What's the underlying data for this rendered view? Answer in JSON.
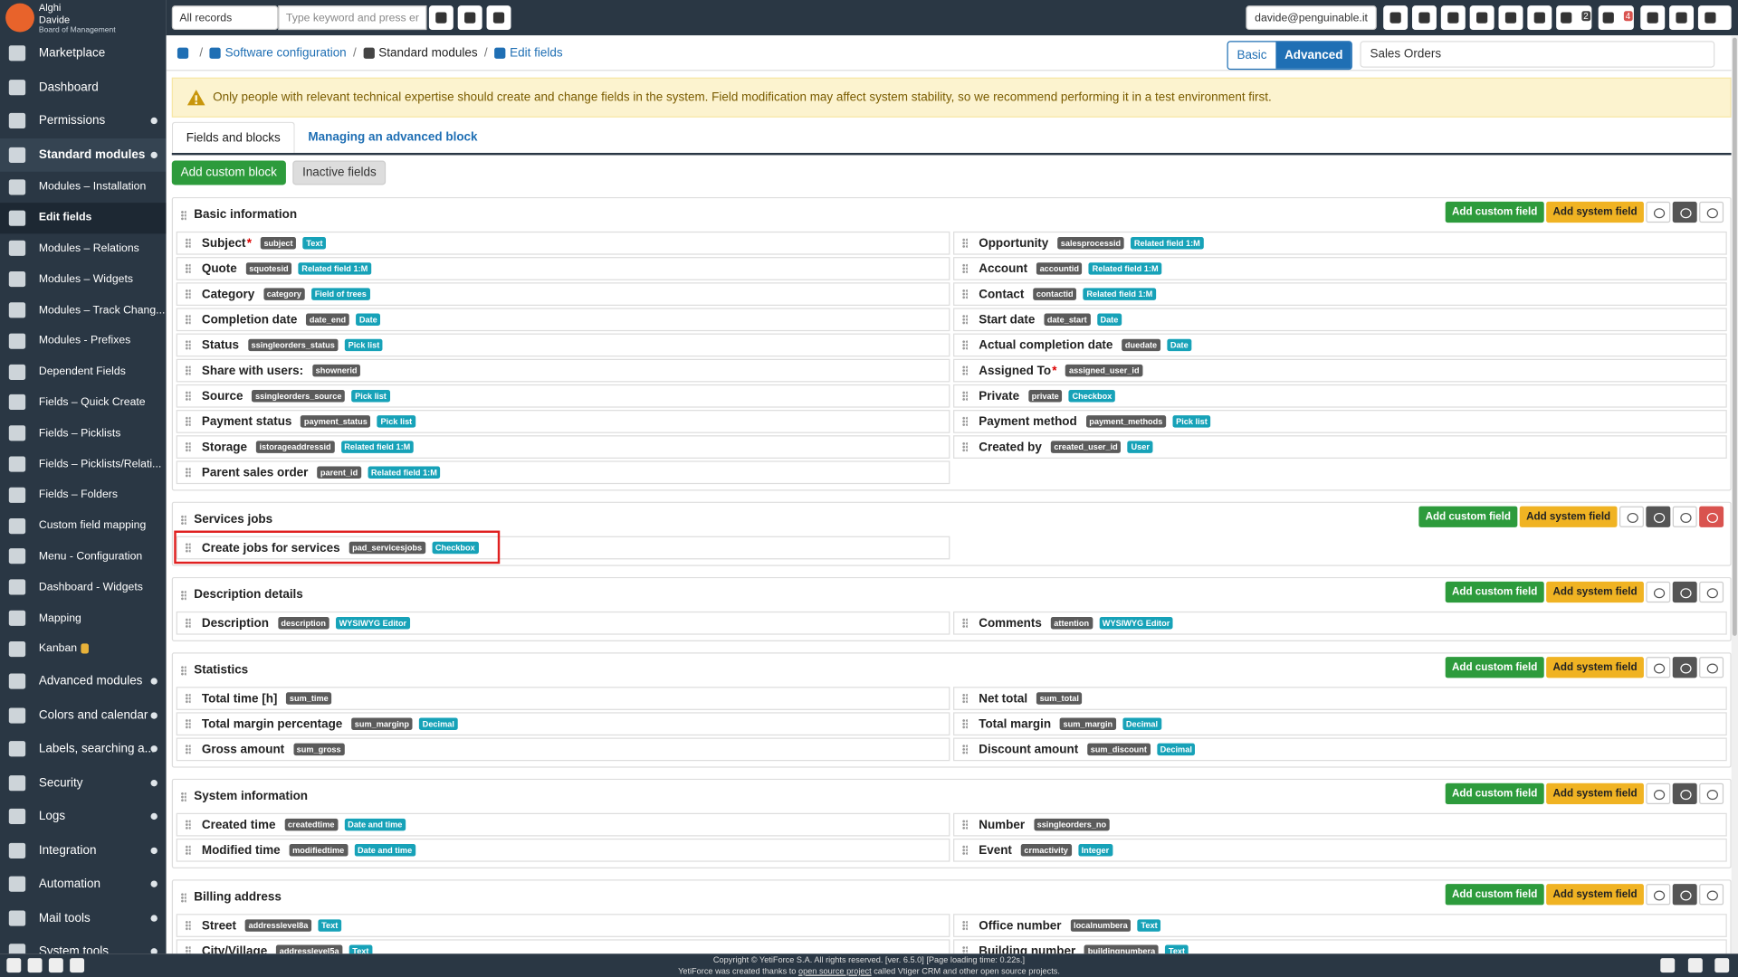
{
  "sidebar": {
    "brand": "Alghi",
    "user": "Davide",
    "role": "Board of Management",
    "items": [
      {
        "label": "Marketplace"
      },
      {
        "label": "Dashboard"
      },
      {
        "label": "Permissions",
        "expandable": true
      },
      {
        "label": "Standard modules",
        "expandable": true,
        "open": true
      },
      {
        "label": "Modules – Installation",
        "sub": true
      },
      {
        "label": "Edit fields",
        "sub": true,
        "active": true
      },
      {
        "label": "Modules – Relations",
        "sub": true
      },
      {
        "label": "Modules – Widgets",
        "sub": true
      },
      {
        "label": "Modules – Track Chang...",
        "sub": true
      },
      {
        "label": "Modules - Prefixes",
        "sub": true
      },
      {
        "label": "Dependent Fields",
        "sub": true
      },
      {
        "label": "Fields – Quick Create",
        "sub": true
      },
      {
        "label": "Fields – Picklists",
        "sub": true
      },
      {
        "label": "Fields – Picklists/Relati...",
        "sub": true
      },
      {
        "label": "Fields – Folders",
        "sub": true
      },
      {
        "label": "Custom field mapping",
        "sub": true
      },
      {
        "label": "Menu - Configuration",
        "sub": true
      },
      {
        "label": "Dashboard - Widgets",
        "sub": true
      },
      {
        "label": "Mapping",
        "sub": true
      },
      {
        "label": "Kanban",
        "sub": true,
        "badge": true
      },
      {
        "label": "Advanced modules",
        "expandable": true
      },
      {
        "label": "Colors and calendar",
        "expandable": true
      },
      {
        "label": "Labels, searching a...",
        "expandable": true
      },
      {
        "label": "Security",
        "expandable": true
      },
      {
        "label": "Logs",
        "expandable": true
      },
      {
        "label": "Integration",
        "expandable": true
      },
      {
        "label": "Automation",
        "expandable": true
      },
      {
        "label": "Mail tools",
        "expandable": true
      },
      {
        "label": "System tools",
        "expandable": true
      }
    ]
  },
  "topbar": {
    "filter": "All records",
    "search_placeholder": "Type keyword and press enter",
    "email": "davide@penguinable.it",
    "notifications": "2",
    "reminders": "4"
  },
  "breadcrumb": [
    "Software configuration",
    "Standard modules",
    "Edit fields"
  ],
  "modes": [
    "Basic",
    "Advanced"
  ],
  "active_mode": 1,
  "module": "Sales Orders",
  "warning": "Only people with relevant technical expertise should create and change fields in the system. Field modification may affect system stability, so we recommend performing it in a test environment first.",
  "tabs": [
    "Fields and blocks",
    "Managing an advanced block"
  ],
  "actions": [
    "Add custom block",
    "Inactive fields"
  ],
  "block_actions": [
    "Add custom field",
    "Add system field"
  ],
  "blocks": [
    {
      "title": "Basic information",
      "left": [
        {
          "label": "Subject",
          "mark": "*",
          "name": "subject",
          "type": "Text"
        },
        {
          "label": "Quote",
          "name": "squotesid",
          "type": "Related field 1:M"
        },
        {
          "label": "Category",
          "name": "category",
          "type": "Field of trees"
        },
        {
          "label": "Completion date",
          "name": "date_end",
          "type": "Date"
        },
        {
          "label": "Status",
          "name": "ssingleorders_status",
          "type": "Pick list"
        },
        {
          "label": "Share with users:",
          "name": "shownerid"
        },
        {
          "label": "Source",
          "name": "ssingleorders_source",
          "type": "Pick list"
        },
        {
          "label": "Payment status",
          "name": "payment_status",
          "type": "Pick list"
        },
        {
          "label": "Storage",
          "name": "istorageaddressid",
          "type": "Related field 1:M"
        },
        {
          "label": "Parent sales order",
          "name": "parent_id",
          "type": "Related field 1:M"
        }
      ],
      "right": [
        {
          "label": "Opportunity",
          "name": "salesprocessid",
          "type": "Related field 1:M"
        },
        {
          "label": "Account",
          "name": "accountid",
          "type": "Related field 1:M"
        },
        {
          "label": "Contact",
          "name": "contactid",
          "type": "Related field 1:M"
        },
        {
          "label": "Start date",
          "name": "date_start",
          "type": "Date"
        },
        {
          "label": "Actual completion date",
          "name": "duedate",
          "type": "Date"
        },
        {
          "label": "Assigned To",
          "mark": "*",
          "name": "assigned_user_id"
        },
        {
          "label": "Private",
          "name": "private",
          "type": "Checkbox"
        },
        {
          "label": "Payment method",
          "name": "payment_methods",
          "type": "Pick list"
        },
        {
          "label": "Created by",
          "name": "created_user_id",
          "type": "User"
        }
      ]
    },
    {
      "title": "Services jobs",
      "deletable": true,
      "highlighted": true,
      "left": [
        {
          "label": "Create jobs for services",
          "name": "pad_servicesjobs",
          "type": "Checkbox"
        }
      ],
      "right": []
    },
    {
      "title": "Description details",
      "left": [
        {
          "label": "Description",
          "name": "description",
          "type": "WYSIWYG Editor"
        }
      ],
      "right": [
        {
          "label": "Comments",
          "name": "attention",
          "type": "WYSIWYG Editor"
        }
      ]
    },
    {
      "title": "Statistics",
      "left": [
        {
          "label": "Total time [h]",
          "name": "sum_time"
        },
        {
          "label": "Total margin percentage",
          "name": "sum_marginp",
          "type": "Decimal"
        },
        {
          "label": "Gross amount",
          "name": "sum_gross"
        }
      ],
      "right": [
        {
          "label": "Net total",
          "name": "sum_total"
        },
        {
          "label": "Total margin",
          "name": "sum_margin",
          "type": "Decimal"
        },
        {
          "label": "Discount amount",
          "name": "sum_discount",
          "type": "Decimal"
        }
      ]
    },
    {
      "title": "System information",
      "left": [
        {
          "label": "Created time",
          "name": "createdtime",
          "type": "Date and time"
        },
        {
          "label": "Modified time",
          "name": "modifiedtime",
          "type": "Date and time"
        }
      ],
      "right": [
        {
          "label": "Number",
          "name": "ssingleorders_no"
        },
        {
          "label": "Event",
          "name": "crmactivity",
          "type": "Integer"
        }
      ]
    },
    {
      "title": "Billing address",
      "left": [
        {
          "label": "Street",
          "name": "addresslevel8a",
          "type": "Text"
        },
        {
          "label": "City/Village",
          "name": "addresslevel5a",
          "type": "Text"
        }
      ],
      "right": [
        {
          "label": "Office number",
          "name": "localnumbera",
          "type": "Text"
        },
        {
          "label": "Building number",
          "name": "buildingnumbera",
          "type": "Text"
        }
      ]
    }
  ],
  "footer": {
    "copyright": "Copyright © YetiForce S.A. All rights reserved. [ver. 6.5.0] [Page loading time: 0.22s.]",
    "credit_before": "YetiForce was created thanks to",
    "credit_link": "open source project",
    "credit_after": "called Vtiger CRM and other open source projects."
  }
}
